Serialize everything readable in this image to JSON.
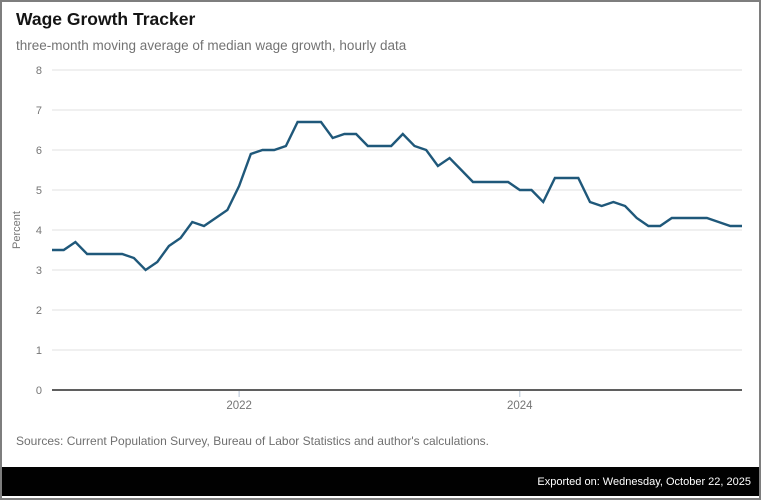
{
  "header": {
    "title": "Wage Growth Tracker",
    "subtitle": "three-month moving average of median wage growth, hourly data"
  },
  "footer": {
    "sources": "Sources: Current Population Survey, Bureau of Labor Statistics and author's calculations.",
    "exported": "Exported on: Wednesday, October 22, 2025"
  },
  "chart_data": {
    "type": "line",
    "title": "Wage Growth Tracker",
    "subtitle": "three-month moving average of median wage growth, hourly data",
    "xlabel": "",
    "ylabel": "Percent",
    "ylim": [
      0,
      8
    ],
    "yticks": [
      0,
      1,
      2,
      3,
      4,
      5,
      6,
      7,
      8
    ],
    "grid": "horizontal",
    "legend": "none",
    "x_start": "2020-09",
    "x_end": "2025-08",
    "frequency": "monthly",
    "xticks": [
      {
        "label": "2022",
        "index": 16
      },
      {
        "label": "2024",
        "index": 40
      }
    ],
    "series": [
      {
        "name": "Median wage growth, hourly (3-month moving average)",
        "values": [
          3.5,
          3.5,
          3.7,
          3.4,
          3.4,
          3.4,
          3.4,
          3.3,
          3.0,
          3.2,
          3.6,
          3.8,
          4.2,
          4.1,
          4.3,
          4.5,
          5.1,
          5.9,
          6.0,
          6.0,
          6.1,
          6.7,
          6.7,
          6.7,
          6.3,
          6.4,
          6.4,
          6.1,
          6.1,
          6.1,
          6.4,
          6.1,
          6.0,
          5.6,
          5.8,
          5.5,
          5.2,
          5.2,
          5.2,
          5.2,
          5.0,
          5.0,
          4.7,
          5.3,
          5.3,
          5.3,
          4.7,
          4.6,
          4.7,
          4.6,
          4.3,
          4.1,
          4.1,
          4.3,
          4.3,
          4.3,
          4.3,
          4.2,
          4.1,
          4.1
        ]
      }
    ],
    "colors": {
      "line": "#1f587a",
      "grid": "#e2e2e2",
      "axis": "#5f5f5f",
      "tick": "#b5c4d6",
      "axis_label": "#757575"
    }
  }
}
